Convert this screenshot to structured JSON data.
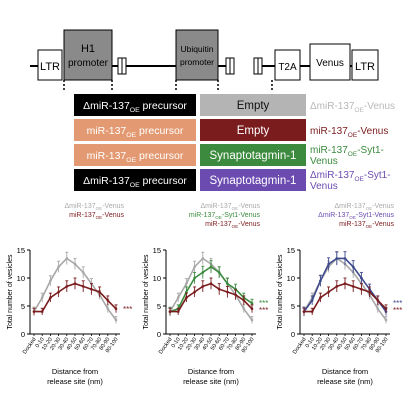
{
  "constructs": {
    "elements": {
      "ltr_left": "LTR",
      "h1_promoter": [
        "H1",
        "promoter"
      ],
      "ubiquitin_promoter": [
        "Ubiquitin",
        "promoter"
      ],
      "t2a": "T2A",
      "venus": "Venus",
      "ltr_right": "LTR"
    },
    "rows": [
      {
        "precursor": {
          "pre": "Δ",
          "main": "miR-137",
          "sub": "OE",
          "post": " precursor"
        },
        "insert": "Empty",
        "name": {
          "pre": "Δ",
          "main": "miR-137",
          "sub": "OE",
          "post": "-Venus"
        },
        "precursor_color": "#000000",
        "insert_color": "#b4b4b4",
        "insert_text_color": "#111111",
        "name_color": "#b8b8b8"
      },
      {
        "precursor": {
          "pre": "",
          "main": "miR-137",
          "sub": "OE",
          "post": " precursor"
        },
        "insert": "Empty",
        "name": {
          "pre": "",
          "main": "miR-137",
          "sub": "OE",
          "post": "-Venus"
        },
        "precursor_color": "#e39a72",
        "insert_color": "#7a1b1e",
        "insert_text_color": "#ffffff",
        "name_color": "#7a1b1e"
      },
      {
        "precursor": {
          "pre": "",
          "main": "miR-137",
          "sub": "OE",
          "post": " precursor"
        },
        "insert": "Synaptotagmin-1",
        "name": {
          "pre": "",
          "main": "miR-137",
          "sub": "OE",
          "post": "-Syt1-",
          "line2": "Venus"
        },
        "precursor_color": "#e39a72",
        "insert_color": "#3b8a3e",
        "insert_text_color": "#ffffff",
        "name_color": "#3b8a3e"
      },
      {
        "precursor": {
          "pre": "Δ",
          "main": "miR-137",
          "sub": "OE",
          "post": " precursor"
        },
        "insert": "Synaptotagmin-1",
        "name": {
          "pre": "Δ",
          "main": "miR-137",
          "sub": "OE",
          "post": "-Syt1-",
          "line2": "Venus"
        },
        "precursor_color": "#000000",
        "insert_color": "#6b4bb0",
        "insert_text_color": "#ffffff",
        "name_color": "#6b4bb0"
      }
    ]
  },
  "chart_data": [
    {
      "type": "line",
      "ylabel": "Total number of vesicles",
      "xlabel": "Distance from release site (nm)",
      "categories": [
        "Docked",
        "0-10",
        "10-20",
        "20-30",
        "30-40",
        "40-50",
        "50-60",
        "60-70",
        "70-80",
        "80-90",
        "90-100"
      ],
      "ylim": [
        0,
        15
      ],
      "yticks": [
        0,
        5,
        10,
        15
      ],
      "legend": [
        {
          "text": {
            "pre": "Δ",
            "main": "miR-137",
            "sub": "OE",
            "post": "-Venus"
          },
          "color": "#a8a8a8"
        },
        {
          "text": {
            "pre": "",
            "main": "miR-137",
            "sub": "OE",
            "post": "-Venus"
          },
          "color": "#7a1b1e"
        }
      ],
      "series": [
        {
          "values": [
            4.0,
            6.5,
            9.5,
            12.0,
            13.5,
            12.5,
            11.0,
            9.0,
            7.0,
            4.5,
            2.5
          ],
          "errors": [
            0.8,
            0.8,
            0.9,
            1.0,
            1.1,
            1.0,
            1.0,
            0.9,
            0.8,
            0.7,
            0.6
          ],
          "color": "#a8a8a8"
        },
        {
          "values": [
            4.0,
            4.0,
            6.5,
            7.5,
            8.5,
            9.0,
            8.5,
            8.0,
            7.5,
            6.0,
            4.5
          ],
          "errors": [
            0.6,
            0.6,
            0.8,
            0.9,
            1.0,
            1.0,
            1.0,
            1.0,
            0.9,
            0.8,
            0.7
          ],
          "color": "#7a1b1e"
        }
      ],
      "significance": [
        {
          "text": "***",
          "color": "#7a1b1e",
          "y": 4.5
        }
      ]
    },
    {
      "type": "line",
      "ylabel": "Total number of vesicles",
      "xlabel": "Distance from release site (nm)",
      "categories": [
        "Docked",
        "0-10",
        "10-20",
        "20-30",
        "30-40",
        "40-50",
        "50-60",
        "60-70",
        "70-80",
        "80-90",
        "90-100"
      ],
      "ylim": [
        0,
        15
      ],
      "yticks": [
        0,
        5,
        10,
        15
      ],
      "legend": [
        {
          "text": {
            "pre": "Δ",
            "main": "miR-137",
            "sub": "OE",
            "post": "-Venus"
          },
          "color": "#a8a8a8"
        },
        {
          "text": {
            "pre": "",
            "main": "miR-137",
            "sub": "OE",
            "post": "-Syt1-Venus"
          },
          "color": "#3b8a3e"
        },
        {
          "text": {
            "pre": "",
            "main": "miR-137",
            "sub": "OE",
            "post": "-Venus"
          },
          "color": "#7a1b1e"
        }
      ],
      "series": [
        {
          "values": [
            4.0,
            6.5,
            9.0,
            12.0,
            13.5,
            12.5,
            11.0,
            9.0,
            7.0,
            4.5,
            2.5
          ],
          "errors": [
            0.8,
            0.8,
            0.9,
            1.0,
            1.1,
            1.0,
            1.0,
            0.9,
            0.8,
            0.7,
            0.6
          ],
          "color": "#a8a8a8"
        },
        {
          "values": [
            4.0,
            4.5,
            7.5,
            10.0,
            11.0,
            12.0,
            11.0,
            9.0,
            8.0,
            6.5,
            5.5
          ],
          "errors": [
            0.7,
            0.7,
            0.9,
            1.0,
            1.1,
            1.1,
            1.0,
            1.0,
            0.9,
            0.8,
            0.7
          ],
          "color": "#3b8a3e"
        },
        {
          "values": [
            4.0,
            4.0,
            6.5,
            7.5,
            8.5,
            9.0,
            8.0,
            7.5,
            7.0,
            6.0,
            4.5
          ],
          "errors": [
            0.6,
            0.6,
            0.8,
            0.9,
            1.0,
            1.0,
            1.0,
            1.0,
            0.9,
            0.8,
            0.7
          ],
          "color": "#7a1b1e"
        }
      ],
      "significance": [
        {
          "text": "***",
          "color": "#3b8a3e",
          "y": 5.5
        },
        {
          "text": "***",
          "color": "#7a1b1e",
          "y": 4.3
        }
      ]
    },
    {
      "type": "line",
      "ylabel": "Total number of vesicles",
      "xlabel": "Distance from release site (nm)",
      "categories": [
        "Docked",
        "0-10",
        "10-20",
        "20-30",
        "30-40",
        "40-50",
        "50-60",
        "60-70",
        "70-80",
        "80-90",
        "90-100"
      ],
      "ylim": [
        0,
        15
      ],
      "yticks": [
        0,
        5,
        10,
        15
      ],
      "legend": [
        {
          "text": {
            "pre": "Δ",
            "main": "miR-137",
            "sub": "OE",
            "post": "-Venus"
          },
          "color": "#a8a8a8"
        },
        {
          "text": {
            "pre": "Δ",
            "main": "miR-137",
            "sub": "OE",
            "post": "-Syt1-Venus"
          },
          "color": "#6b4bb0"
        },
        {
          "text": {
            "pre": "",
            "main": "miR-137",
            "sub": "OE",
            "post": "-Venus"
          },
          "color": "#7a1b1e"
        }
      ],
      "series": [
        {
          "values": [
            4.0,
            6.5,
            9.5,
            12.0,
            13.5,
            12.5,
            11.0,
            9.0,
            7.0,
            4.5,
            2.5
          ],
          "errors": [
            0.8,
            0.8,
            0.9,
            1.0,
            1.1,
            1.0,
            1.0,
            0.9,
            0.8,
            0.7,
            0.6
          ],
          "color": "#a8a8a8"
        },
        {
          "values": [
            4.0,
            6.0,
            9.5,
            12.5,
            13.5,
            13.5,
            12.0,
            10.0,
            8.0,
            6.0,
            4.0
          ],
          "errors": [
            0.8,
            0.8,
            1.0,
            1.1,
            1.2,
            1.2,
            1.1,
            1.0,
            0.9,
            0.8,
            0.7
          ],
          "color": "#3f4a8c"
        },
        {
          "values": [
            4.0,
            4.0,
            6.5,
            7.5,
            8.5,
            9.0,
            8.5,
            8.0,
            7.5,
            6.0,
            4.5
          ],
          "errors": [
            0.6,
            0.6,
            0.8,
            0.9,
            1.0,
            1.0,
            1.0,
            1.0,
            0.9,
            0.8,
            0.7
          ],
          "color": "#7a1b1e"
        }
      ],
      "significance": [
        {
          "text": "***",
          "color": "#3f4a8c",
          "y": 5.5
        },
        {
          "text": "***",
          "color": "#7a1b1e",
          "y": 4.3
        }
      ]
    }
  ]
}
